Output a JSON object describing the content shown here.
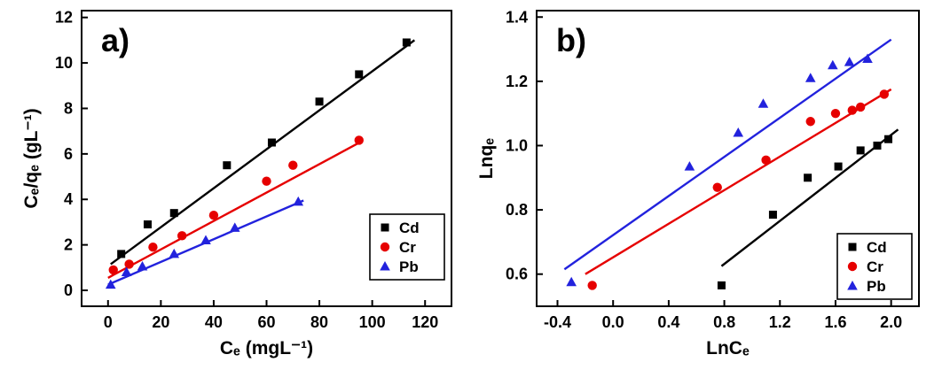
{
  "figure": {
    "background": "#ffffff",
    "frame_color": "#000000"
  },
  "chart_data": [
    {
      "id": "chart-a",
      "type": "scatter",
      "panel_label": "a)",
      "xlabel": "Cₑ (mgL⁻¹)",
      "ylabel": "Cₑ/qₑ (gL⁻¹)",
      "xlim": [
        -10,
        130
      ],
      "ylim": [
        -0.7,
        12.3
      ],
      "xticks": [
        0,
        20,
        40,
        60,
        80,
        100,
        120
      ],
      "xtick_labels": [
        "0",
        "20",
        "40",
        "60",
        "80",
        "100",
        "120"
      ],
      "yticks": [
        0,
        2,
        4,
        6,
        8,
        10,
        12
      ],
      "ytick_labels": [
        "0",
        "2",
        "4",
        "6",
        "8",
        "10",
        "12"
      ],
      "grid": false,
      "legend_position": "bottom-right",
      "series": [
        {
          "name": "Cd",
          "marker": "square",
          "color": "#000000",
          "points": [
            [
              5,
              1.6
            ],
            [
              15,
              2.9
            ],
            [
              25,
              3.4
            ],
            [
              45,
              5.5
            ],
            [
              62,
              6.5
            ],
            [
              80,
              8.3
            ],
            [
              95,
              9.5
            ],
            [
              113,
              10.9
            ]
          ],
          "fit": [
            [
              1,
              1.15
            ],
            [
              116,
              11.0
            ]
          ]
        },
        {
          "name": "Cr",
          "marker": "circle",
          "color": "#e60000",
          "points": [
            [
              2,
              0.9
            ],
            [
              8,
              1.15
            ],
            [
              17,
              1.9
            ],
            [
              28,
              2.4
            ],
            [
              40,
              3.3
            ],
            [
              60,
              4.8
            ],
            [
              70,
              5.5
            ],
            [
              95,
              6.6
            ]
          ],
          "fit": [
            [
              0,
              0.55
            ],
            [
              96,
              6.55
            ]
          ]
        },
        {
          "name": "Pb",
          "marker": "triangle",
          "color": "#2222dd",
          "points": [
            [
              1,
              0.25
            ],
            [
              7,
              0.8
            ],
            [
              13,
              1.05
            ],
            [
              25,
              1.6
            ],
            [
              37,
              2.2
            ],
            [
              48,
              2.75
            ],
            [
              72,
              3.9
            ]
          ],
          "fit": [
            [
              0,
              0.25
            ],
            [
              74,
              3.95
            ]
          ]
        }
      ]
    },
    {
      "id": "chart-b",
      "type": "scatter",
      "panel_label": "b)",
      "xlabel": "LnCₑ",
      "ylabel": "Lnqₑ",
      "xlim": [
        -0.55,
        2.2
      ],
      "ylim": [
        0.5,
        1.42
      ],
      "xticks": [
        -0.4,
        0.0,
        0.4,
        0.8,
        1.2,
        1.6,
        2.0
      ],
      "xtick_labels": [
        "-0.4",
        "0.0",
        "0.4",
        "0.8",
        "1.2",
        "1.6",
        "2.0"
      ],
      "yticks": [
        0.6,
        0.8,
        1.0,
        1.2,
        1.4
      ],
      "ytick_labels": [
        "0.6",
        "0.8",
        "1.0",
        "1.2",
        "1.4"
      ],
      "grid": false,
      "legend_position": "bottom-right",
      "series": [
        {
          "name": "Cd",
          "marker": "square",
          "color": "#000000",
          "points": [
            [
              0.78,
              0.565
            ],
            [
              1.15,
              0.785
            ],
            [
              1.4,
              0.9
            ],
            [
              1.62,
              0.935
            ],
            [
              1.78,
              0.985
            ],
            [
              1.9,
              1.0
            ],
            [
              1.98,
              1.02
            ]
          ],
          "fit": [
            [
              0.78,
              0.625
            ],
            [
              2.05,
              1.05
            ]
          ]
        },
        {
          "name": "Cr",
          "marker": "circle",
          "color": "#e60000",
          "points": [
            [
              -0.15,
              0.565
            ],
            [
              0.75,
              0.87
            ],
            [
              1.1,
              0.955
            ],
            [
              1.42,
              1.075
            ],
            [
              1.6,
              1.1
            ],
            [
              1.72,
              1.11
            ],
            [
              1.78,
              1.12
            ],
            [
              1.95,
              1.16
            ]
          ],
          "fit": [
            [
              -0.2,
              0.6
            ],
            [
              2.0,
              1.175
            ]
          ]
        },
        {
          "name": "Pb",
          "marker": "triangle",
          "color": "#2222dd",
          "points": [
            [
              -0.3,
              0.575
            ],
            [
              0.55,
              0.935
            ],
            [
              0.9,
              1.04
            ],
            [
              1.08,
              1.13
            ],
            [
              1.42,
              1.21
            ],
            [
              1.58,
              1.25
            ],
            [
              1.7,
              1.26
            ],
            [
              1.83,
              1.27
            ]
          ],
          "fit": [
            [
              -0.35,
              0.615
            ],
            [
              2.0,
              1.33
            ]
          ]
        }
      ]
    }
  ]
}
